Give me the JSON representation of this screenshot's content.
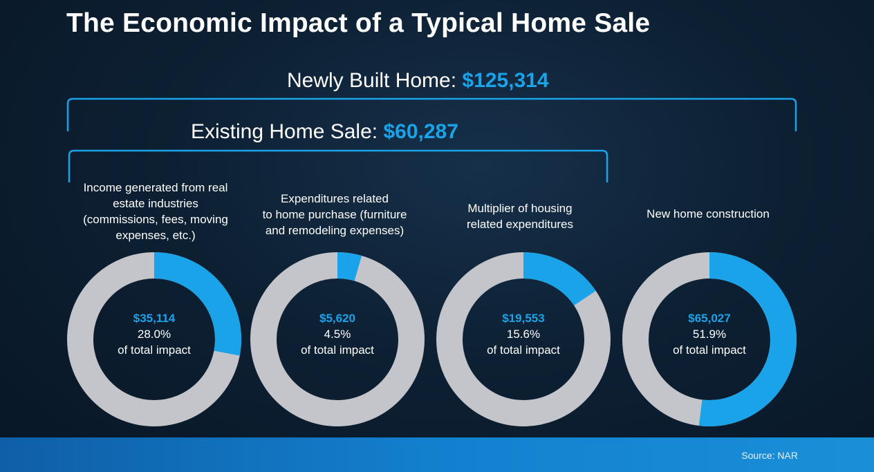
{
  "title": "The Economic Impact of a Typical Home Sale",
  "headlines": {
    "newly_built": {
      "label": "Newly Built Home: ",
      "value": "$125,314"
    },
    "existing": {
      "label": "Existing Home Sale: ",
      "value": "$60,287"
    }
  },
  "colors": {
    "accent": "#1aa3e8",
    "ring_track": "#c3c5ca",
    "footer": "#1380cf"
  },
  "chart_data": {
    "type": "pie",
    "variant": "donut",
    "segments": [
      {
        "label": "Income generated from real estate industries (commissions, fees, moving expenses, etc.)",
        "label_lines": [
          "Income generated from real",
          "estate industries",
          "(commissions, fees, moving",
          "expenses, etc.)"
        ],
        "value": 35114,
        "value_text": "$35,114",
        "percent": 28.0,
        "percent_text": "28.0%",
        "caption": "of total impact"
      },
      {
        "label": "Expenditures related to home purchase (furniture and remodeling expenses)",
        "label_lines": [
          "Expenditures related",
          "to home purchase (furniture",
          "and remodeling expenses)"
        ],
        "value": 5620,
        "value_text": "$5,620",
        "percent": 4.5,
        "percent_text": "4.5%",
        "caption": "of total impact"
      },
      {
        "label": "Multiplier of housing related expenditures",
        "label_lines": [
          "Multiplier of housing",
          "related expenditures"
        ],
        "value": 19553,
        "value_text": "$19,553",
        "percent": 15.6,
        "percent_text": "15.6%",
        "caption": "of total impact"
      },
      {
        "label": "New home construction",
        "label_lines": [
          "New home construction"
        ],
        "value": 65027,
        "value_text": "$65,027",
        "percent": 51.9,
        "percent_text": "51.9%",
        "caption": "of total impact"
      }
    ]
  },
  "footer": {
    "source": "Source: NAR"
  }
}
